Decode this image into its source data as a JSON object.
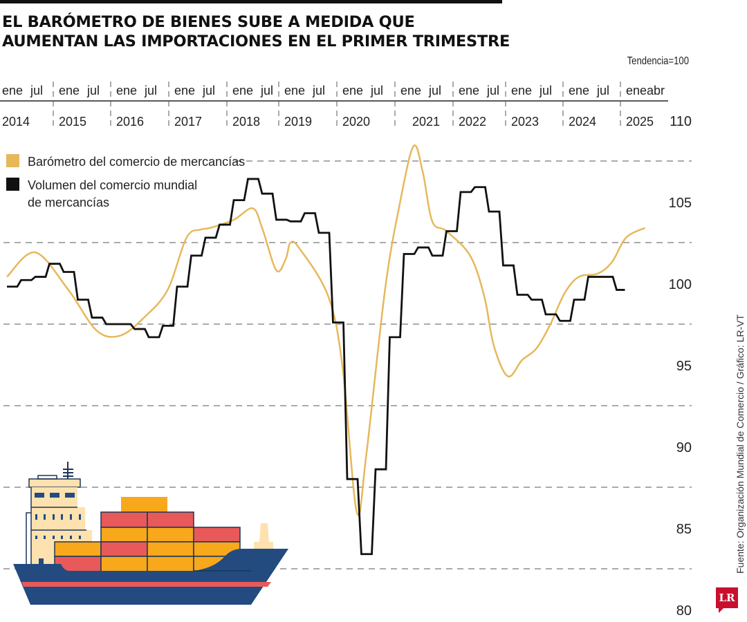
{
  "title": "El barómetro de bienes sube a medida que aumentan las importaciones en el primer trimestre",
  "unit_note": "Tendencia=100",
  "source": "Fuente: Organización Mundial de Comercio  / Gráfico: LR-VT",
  "logo": "LR",
  "colors": {
    "barometer": "#e6b85a",
    "volume": "#111111",
    "hull": "#234b80",
    "container_red": "#e85a5a",
    "container_orange": "#f7a81b",
    "bridge": "#fde2b0",
    "logo": "#c8102e"
  },
  "chart_data": {
    "type": "line",
    "title": "El barómetro de bienes sube a medida que aumentan las importaciones en el primer trimestre",
    "ylabel": "Tendencia=100",
    "ylim": [
      80,
      110
    ],
    "yticks": [
      "110",
      "105",
      "100",
      "95",
      "90",
      "85",
      "80"
    ],
    "grid": "dashed horizontal lines",
    "legend_placement": "top-left",
    "month_labels": [
      "ene",
      "jul"
    ],
    "last_month_labels": [
      "ene",
      "abr"
    ],
    "years": [
      "2014",
      "2015",
      "2016",
      "2017",
      "2018",
      "2019",
      "2020",
      "2021",
      "2022",
      "2023",
      "2024",
      "2025"
    ],
    "series": [
      {
        "name": "Barómetro del comercio de mercancías",
        "style": "smooth",
        "color": "#e6b85a",
        "points": [
          [
            "2014-01",
            100.4
          ],
          [
            "2014-07",
            101.9
          ],
          [
            "2015-02",
            99.6
          ],
          [
            "2015-08",
            97.1
          ],
          [
            "2016-01",
            96.8
          ],
          [
            "2016-06",
            97.9
          ],
          [
            "2016-11",
            99.6
          ],
          [
            "2017-03",
            102.8
          ],
          [
            "2017-06",
            103.3
          ],
          [
            "2017-08",
            103.4
          ],
          [
            "2018-01",
            103.9
          ],
          [
            "2018-05",
            104.6
          ],
          [
            "2018-07",
            103.4
          ],
          [
            "2018-10",
            100.8
          ],
          [
            "2018-12",
            101.5
          ],
          [
            "2019-01",
            102.5
          ],
          [
            "2019-03",
            102.1
          ],
          [
            "2019-09",
            99.2
          ],
          [
            "2019-12",
            94.9
          ],
          [
            "2020-03",
            86.0
          ],
          [
            "2020-05",
            89.4
          ],
          [
            "2020-09",
            99.6
          ],
          [
            "2020-12",
            104.7
          ],
          [
            "2021-03",
            108.4
          ],
          [
            "2021-05",
            106.8
          ],
          [
            "2021-07",
            103.8
          ],
          [
            "2021-10",
            103.2
          ],
          [
            "2022-03",
            101.7
          ],
          [
            "2022-06",
            99.2
          ],
          [
            "2022-08",
            96.2
          ],
          [
            "2022-11",
            94.3
          ],
          [
            "2023-02",
            95.3
          ],
          [
            "2023-05",
            96.0
          ],
          [
            "2023-08",
            97.5
          ],
          [
            "2023-11",
            99.4
          ],
          [
            "2024-02",
            100.4
          ],
          [
            "2024-06",
            100.6
          ],
          [
            "2024-09",
            101.3
          ],
          [
            "2024-12",
            102.8
          ],
          [
            "2025-04",
            103.4
          ]
        ]
      },
      {
        "name": "Volumen del comercio mundial de mercancías",
        "style": "step-quarterly",
        "color": "#111111",
        "points": [
          [
            "2014-01",
            99.8
          ],
          [
            "2014-04",
            100.2
          ],
          [
            "2014-07",
            100.4
          ],
          [
            "2014-10",
            101.2
          ],
          [
            "2015-01",
            100.7
          ],
          [
            "2015-04",
            99.0
          ],
          [
            "2015-07",
            97.9
          ],
          [
            "2015-10",
            97.5
          ],
          [
            "2016-01",
            97.5
          ],
          [
            "2016-04",
            97.2
          ],
          [
            "2016-07",
            96.7
          ],
          [
            "2016-10",
            97.4
          ],
          [
            "2017-01",
            99.8
          ],
          [
            "2017-04",
            101.7
          ],
          [
            "2017-07",
            102.8
          ],
          [
            "2017-10",
            103.6
          ],
          [
            "2018-01",
            105.1
          ],
          [
            "2018-04",
            106.4
          ],
          [
            "2018-07",
            105.5
          ],
          [
            "2018-10",
            103.9
          ],
          [
            "2019-01",
            103.8
          ],
          [
            "2019-04",
            104.3
          ],
          [
            "2019-07",
            103.1
          ],
          [
            "2019-10",
            97.6
          ],
          [
            "2020-01",
            88.0
          ],
          [
            "2020-04",
            83.4
          ],
          [
            "2020-07",
            88.6
          ],
          [
            "2020-10",
            96.7
          ],
          [
            "2021-01",
            101.8
          ],
          [
            "2021-04",
            102.2
          ],
          [
            "2021-07",
            101.7
          ],
          [
            "2021-10",
            103.2
          ],
          [
            "2022-01",
            105.6
          ],
          [
            "2022-04",
            105.9
          ],
          [
            "2022-07",
            104.4
          ],
          [
            "2022-10",
            101.1
          ],
          [
            "2023-01",
            99.3
          ],
          [
            "2023-04",
            99.0
          ],
          [
            "2023-07",
            98.1
          ],
          [
            "2023-10",
            97.7
          ],
          [
            "2024-01",
            99.0
          ],
          [
            "2024-04",
            100.4
          ],
          [
            "2024-07",
            100.4
          ],
          [
            "2024-10",
            99.6
          ]
        ]
      }
    ]
  }
}
